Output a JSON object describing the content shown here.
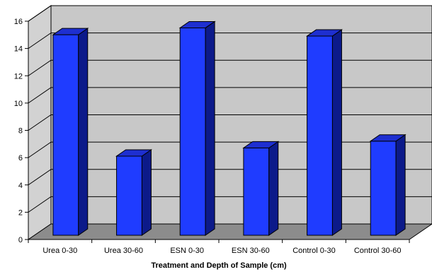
{
  "chart_data": {
    "type": "bar",
    "title": "",
    "xlabel": "Treatment and Depth of Sample (cm)",
    "ylabel": "",
    "categories": [
      "Urea 0-30",
      "Urea 30-60",
      "ESN 0-30",
      "ESN 30-60",
      "Control 0-30",
      "Control 30-60"
    ],
    "values": [
      14.7,
      5.8,
      15.2,
      6.4,
      14.6,
      6.9
    ],
    "ylim": [
      0,
      16
    ],
    "yticks": [
      "0",
      "2",
      "4",
      "6",
      "8",
      "10",
      "12",
      "14",
      "16"
    ],
    "grid": true,
    "legend": "none",
    "style": "3d",
    "colors": {
      "bar_front": "#1f3cff",
      "bar_top": "#1e2fd0",
      "bar_side": "#0c1a8a",
      "back_wall": "#c8c8c8",
      "side_wall": "#d2d2d2",
      "floor": "#8c8c8c",
      "gridline": "#000000"
    }
  }
}
